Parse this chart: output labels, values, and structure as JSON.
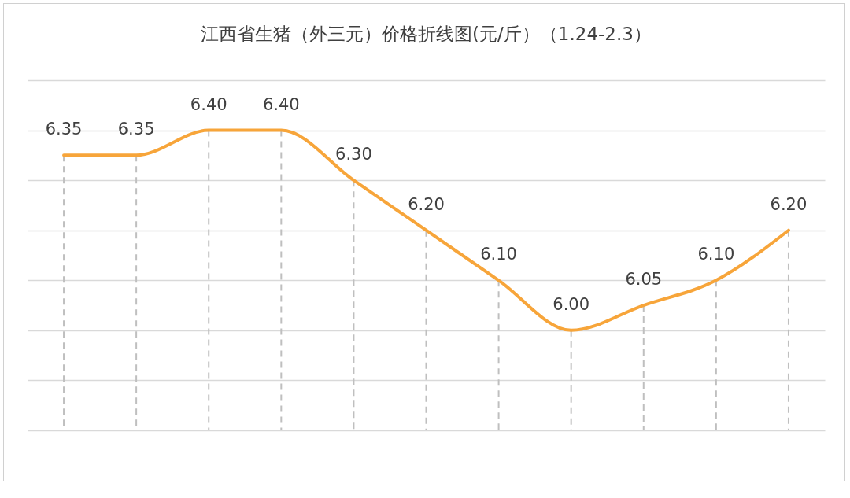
{
  "chart_data": {
    "type": "line",
    "title": "江西省生猪（外三元）价格折线图(元/斤）（1.24-2.3）",
    "categories": [
      null,
      null,
      null,
      null,
      null,
      null,
      null,
      null,
      null,
      null,
      null
    ],
    "series": [
      {
        "color": "#f7a53a",
        "values": [
          6.35,
          6.35,
          6.4,
          6.4,
          6.3,
          6.2,
          6.1,
          6.0,
          6.05,
          6.1,
          6.2
        ],
        "value_labels": [
          "6.35",
          "6.35",
          "6.40",
          "6.40",
          "6.30",
          "6.20",
          "6.10",
          "6.00",
          "6.05",
          "6.10",
          "6.20"
        ]
      }
    ],
    "ylim": [
      5.8,
      6.5
    ],
    "yticks": [
      {
        "value": 5.8,
        "label": null
      },
      {
        "value": 5.9,
        "label": null
      },
      {
        "value": 6.0,
        "label": null
      },
      {
        "value": 6.1,
        "label": null
      },
      {
        "value": 6.2,
        "label": null
      },
      {
        "value": 6.3,
        "label": null
      },
      {
        "value": 6.4,
        "label": null
      },
      {
        "value": 6.5,
        "label": null
      }
    ],
    "tick_labels": false,
    "grid": true,
    "legend": false,
    "marker": "none",
    "line_style": "solid"
  }
}
